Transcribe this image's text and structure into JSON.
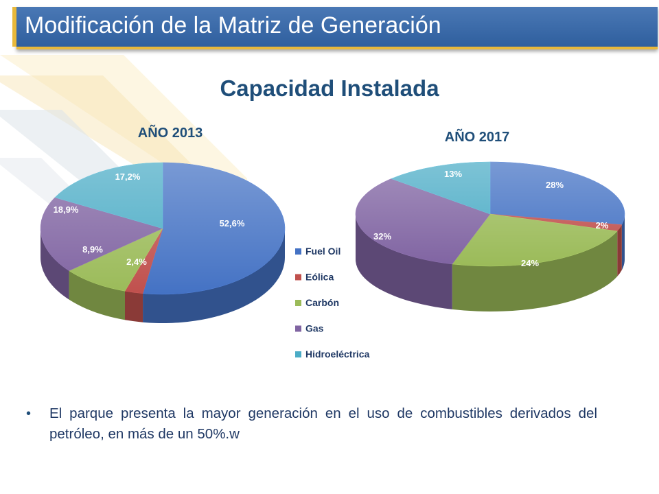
{
  "slide_title": "Modificación de la Matriz de Generación",
  "main_title": "Capacidad Instalada",
  "bullet_text": "El parque presenta la mayor generación en el uso de combustibles derivados del petróleo, en más de un 50%.w",
  "colors": {
    "title_bar": "#3a6aa8",
    "accent": "#e8b83a",
    "heading": "#1f4e79"
  },
  "chart_data": [
    {
      "type": "pie",
      "title": "AÑO 2013",
      "slices": [
        {
          "name": "Fuel Oil",
          "value": 52.6,
          "label": "52,6%",
          "color": "#4472c4"
        },
        {
          "name": "Eólica",
          "value": 2.4,
          "label": "2,4%",
          "color": "#c0504d"
        },
        {
          "name": "Carbón",
          "value": 8.9,
          "label": "8,9%",
          "color": "#9bbb59"
        },
        {
          "name": "Gas",
          "value": 18.9,
          "label": "18,9%",
          "color": "#8064a2"
        },
        {
          "name": "Hidroeléctrica",
          "value": 17.2,
          "label": "17,2%",
          "color": "#4bacc6"
        }
      ]
    },
    {
      "type": "pie",
      "title": "AÑO 2017",
      "slices": [
        {
          "name": "Fuel Oil",
          "value": 28,
          "label": "28%",
          "color": "#4472c4"
        },
        {
          "name": "Eólica",
          "value": 2,
          "label": "2%",
          "color": "#c0504d"
        },
        {
          "name": "Carbón",
          "value": 24,
          "label": "24%",
          "color": "#9bbb59"
        },
        {
          "name": "Gas",
          "value": 32,
          "label": "32%",
          "color": "#8064a2"
        },
        {
          "name": "Hidroeléctrica",
          "value": 13,
          "label": "13%",
          "color": "#4bacc6"
        }
      ]
    }
  ],
  "legend": [
    {
      "label": "Fuel Oil",
      "color": "#4472c4"
    },
    {
      "label": "Eólica",
      "color": "#c0504d"
    },
    {
      "label": "Carbón",
      "color": "#9bbb59"
    },
    {
      "label": "Gas",
      "color": "#8064a2"
    },
    {
      "label": "Hidroeléctrica",
      "color": "#4bacc6"
    }
  ]
}
